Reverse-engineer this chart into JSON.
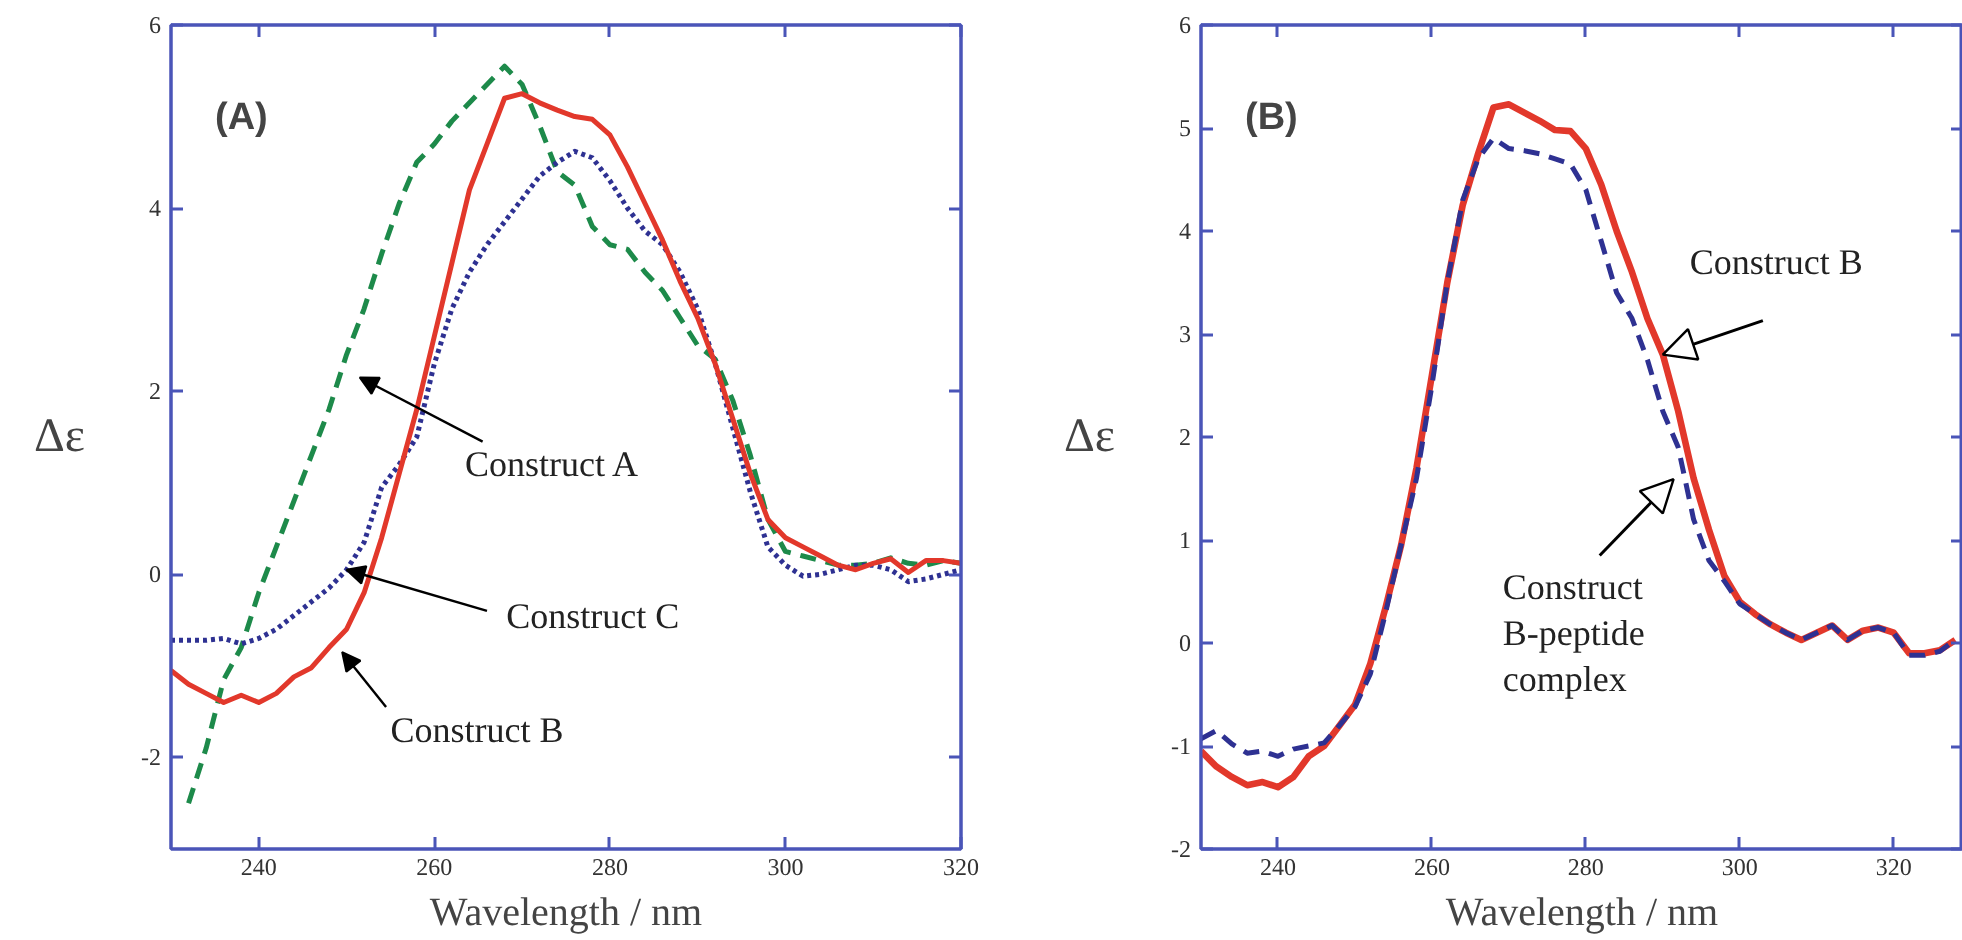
{
  "chart_data": [
    {
      "type": "line",
      "title": "(A)",
      "xlabel": "Wavelength / nm",
      "ylabel": "Δε",
      "xlim": [
        230,
        320
      ],
      "ylim": [
        -3,
        6
      ],
      "xticks": [
        240,
        260,
        280,
        300,
        320
      ],
      "yticks": [
        -2,
        0,
        2,
        4,
        6
      ],
      "grid": false,
      "x": [
        230,
        232,
        234,
        236,
        238,
        240,
        242,
        244,
        246,
        248,
        250,
        252,
        254,
        256,
        258,
        260,
        262,
        264,
        266,
        268,
        270,
        272,
        274,
        276,
        278,
        280,
        282,
        284,
        286,
        288,
        290,
        292,
        294,
        296,
        298,
        300,
        302,
        304,
        306,
        308,
        310,
        312,
        314,
        316,
        318,
        320
      ],
      "series": [
        {
          "color": "#1d8a4a",
          "line_style": "dashed",
          "values": [
            null,
            -2.5,
            -1.9,
            -1.15,
            -0.8,
            -0.2,
            0.3,
            0.8,
            1.3,
            1.8,
            2.4,
            2.9,
            3.5,
            4.05,
            4.5,
            4.7,
            4.95,
            5.15,
            5.35,
            5.55,
            5.35,
            4.9,
            4.4,
            4.25,
            3.8,
            3.6,
            3.55,
            3.3,
            3.1,
            2.8,
            2.5,
            2.35,
            1.9,
            1.3,
            0.6,
            0.25,
            0.2,
            0.15,
            0.1,
            0.1,
            0.12,
            0.18,
            0.12,
            0.1,
            0.15,
            0.12
          ]
        },
        {
          "color": "#2e3192",
          "line_style": "dotted",
          "values": [
            -0.72,
            -0.72,
            -0.72,
            -0.7,
            -0.76,
            -0.7,
            -0.6,
            -0.45,
            -0.3,
            -0.15,
            0.05,
            0.35,
            0.95,
            1.2,
            1.5,
            2.3,
            2.9,
            3.3,
            3.6,
            3.85,
            4.1,
            4.35,
            4.5,
            4.62,
            4.55,
            4.3,
            4.0,
            3.75,
            3.6,
            3.3,
            2.9,
            2.3,
            1.6,
            0.9,
            0.3,
            0.1,
            -0.02,
            0.0,
            0.05,
            0.1,
            0.1,
            0.05,
            -0.08,
            -0.05,
            0.0,
            0.05
          ]
        },
        {
          "color": "#e2382b",
          "line_style": "solid",
          "values": [
            -1.05,
            -1.2,
            -1.3,
            -1.4,
            -1.32,
            -1.4,
            -1.3,
            -1.12,
            -1.02,
            -0.8,
            -0.6,
            -0.2,
            0.4,
            1.1,
            1.8,
            2.6,
            3.4,
            4.2,
            4.7,
            5.2,
            5.25,
            5.15,
            5.07,
            5.0,
            4.97,
            4.8,
            4.45,
            4.05,
            3.65,
            3.2,
            2.8,
            2.3,
            1.7,
            1.1,
            0.6,
            0.4,
            0.3,
            0.2,
            0.1,
            0.05,
            0.12,
            0.17,
            0.02,
            0.15,
            0.15,
            0.12
          ]
        }
      ],
      "annotations": [
        "Construct A",
        {
          "text": "Construct C",
          "x": 250,
          "y": 0.05
        },
        "Construct B"
      ]
    },
    {
      "type": "line",
      "title": "(B)",
      "xlabel": "Wavelength / nm",
      "ylabel": "Δε",
      "xlim": [
        230,
        329
      ],
      "ylim": [
        -2,
        6
      ],
      "xticks": [
        240,
        260,
        280,
        300,
        320
      ],
      "yticks": [
        -2,
        -1,
        0,
        1,
        2,
        3,
        4,
        5,
        6
      ],
      "grid": false,
      "x": [
        230,
        232,
        234,
        236,
        238,
        240,
        242,
        244,
        246,
        248,
        250,
        252,
        254,
        256,
        258,
        260,
        262,
        264,
        266,
        268,
        270,
        272,
        274,
        276,
        278,
        280,
        282,
        284,
        286,
        288,
        290,
        292,
        294,
        296,
        298,
        300,
        302,
        304,
        306,
        308,
        310,
        312,
        314,
        316,
        318,
        320,
        322,
        324,
        326,
        328
      ],
      "series": [
        {
          "color": "#e2382b",
          "line_style": "solid",
          "values": [
            -1.05,
            -1.2,
            -1.3,
            -1.38,
            -1.35,
            -1.4,
            -1.3,
            -1.1,
            -1.0,
            -0.8,
            -0.6,
            -0.2,
            0.35,
            0.95,
            1.7,
            2.6,
            3.5,
            4.25,
            4.75,
            5.2,
            5.23,
            5.15,
            5.07,
            4.98,
            4.97,
            4.8,
            4.45,
            4.0,
            3.6,
            3.15,
            2.8,
            2.25,
            1.6,
            1.1,
            0.65,
            0.4,
            0.28,
            0.18,
            0.1,
            0.03,
            0.1,
            0.17,
            0.03,
            0.12,
            0.15,
            0.1,
            -0.1,
            -0.1,
            -0.07,
            0.03
          ]
        },
        {
          "color": "#2e3192",
          "line_style": "dashed",
          "values": [
            -0.93,
            -0.85,
            -0.98,
            -1.07,
            -1.05,
            -1.1,
            -1.03,
            -1.0,
            -0.97,
            -0.8,
            -0.62,
            -0.3,
            0.3,
            0.95,
            1.6,
            2.5,
            3.5,
            4.3,
            4.7,
            4.9,
            4.8,
            4.78,
            4.75,
            4.7,
            4.65,
            4.4,
            3.9,
            3.4,
            3.15,
            2.75,
            2.25,
            1.9,
            1.2,
            0.8,
            0.6,
            0.38,
            0.28,
            0.18,
            0.1,
            0.03,
            0.1,
            0.17,
            0.03,
            0.12,
            0.15,
            0.1,
            -0.12,
            -0.12,
            -0.08,
            0.03
          ]
        }
      ],
      "annotations": [
        {
          "text": "Construct B",
          "x": 290,
          "y": 2.8
        },
        {
          "text": "Construct\nB-peptide\ncomplex",
          "x": 291.4,
          "y": 1.59
        }
      ]
    }
  ]
}
